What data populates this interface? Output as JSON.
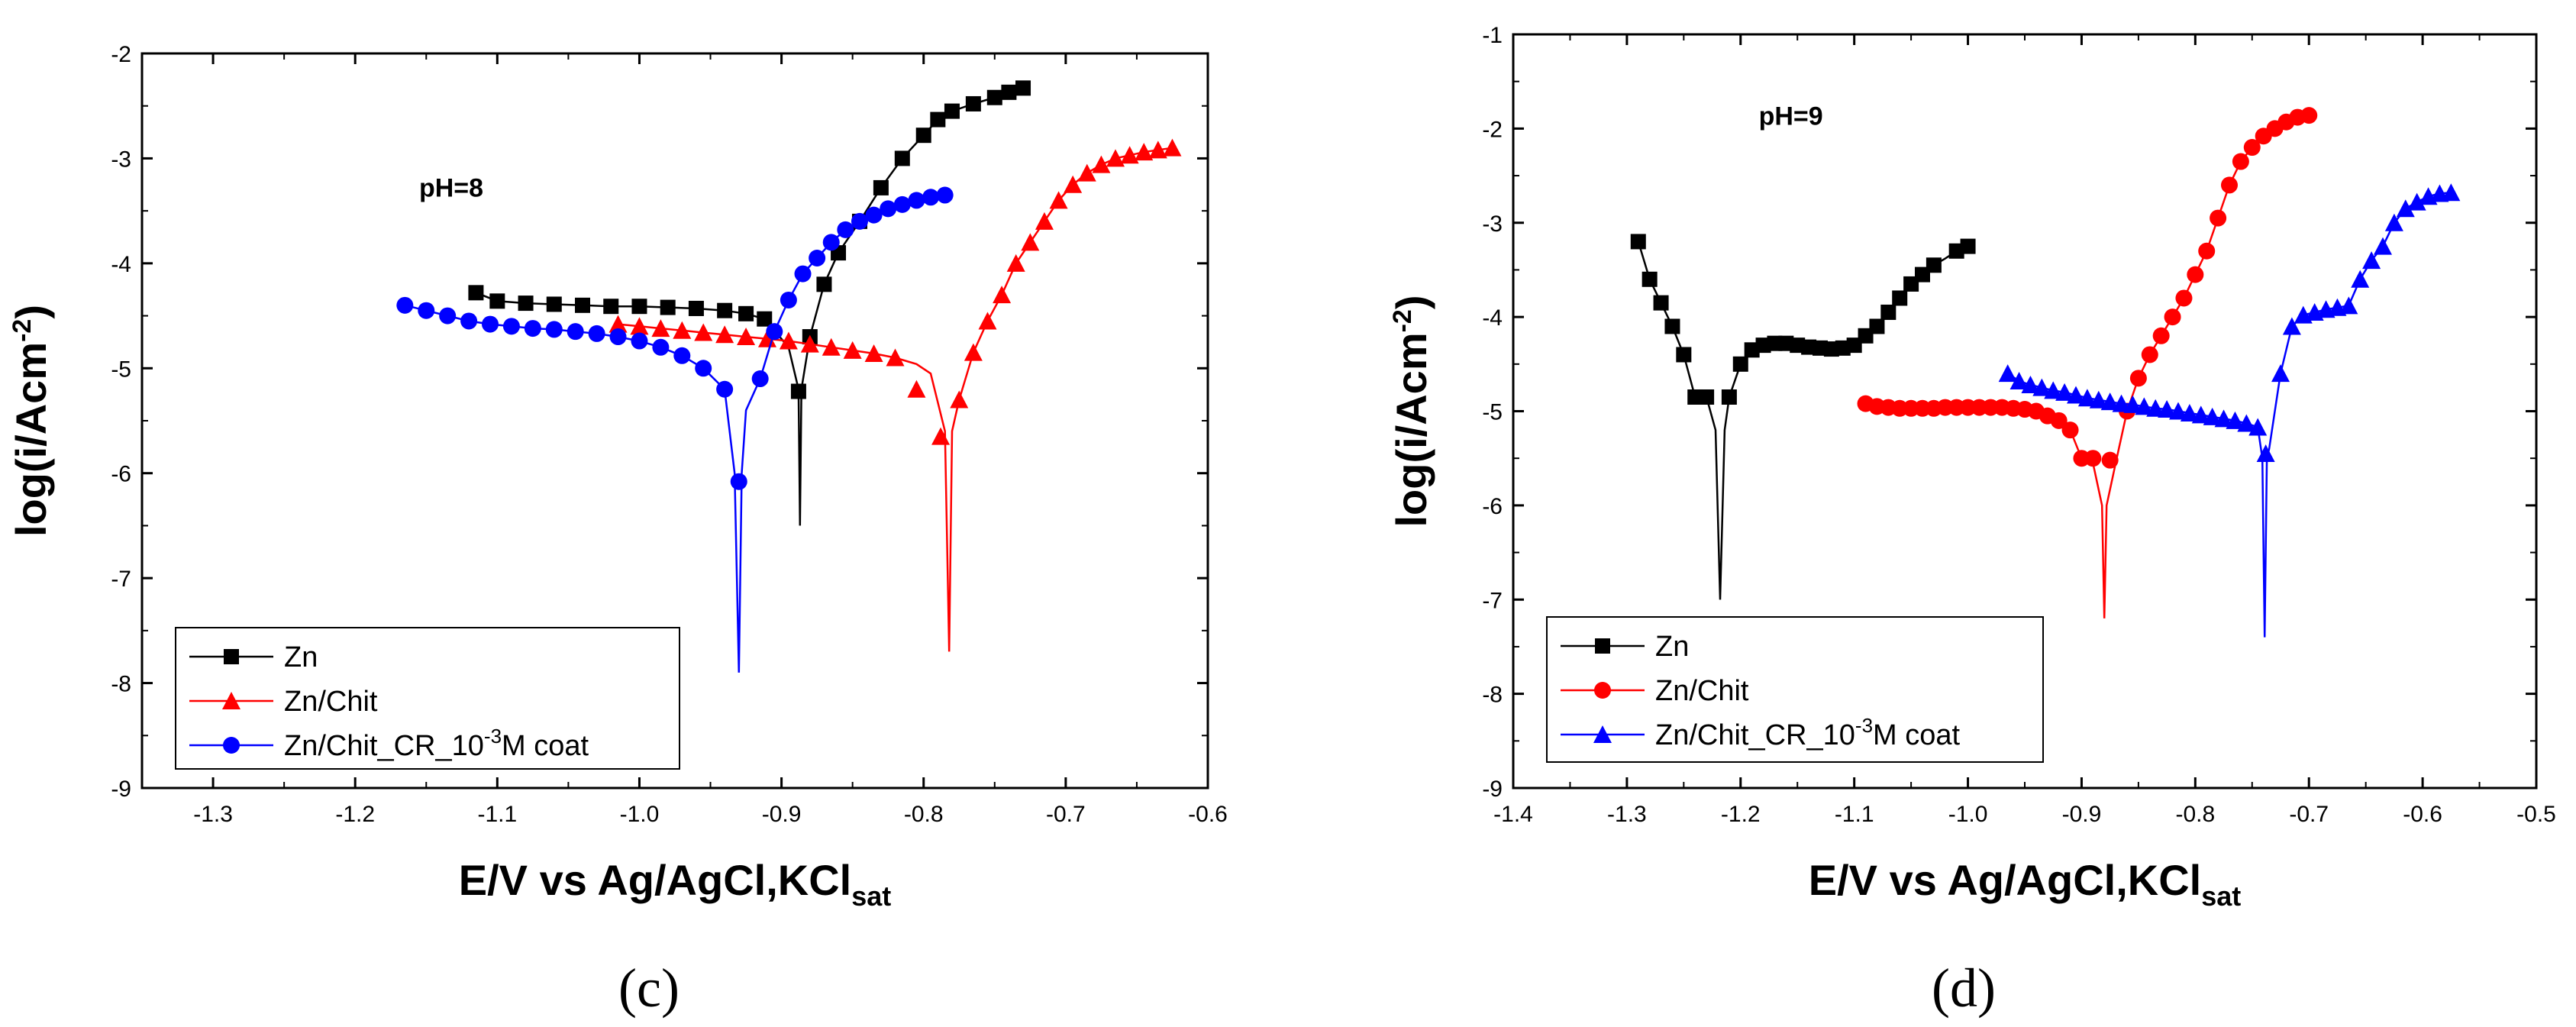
{
  "chart_data": [
    {
      "type": "line",
      "panel_label": "(c)",
      "annotation": "pH=8",
      "xlabel": "E/V vs Ag/AgCl,KCl",
      "xlabel_sub": "sat",
      "ylabel": "log(i/Acm",
      "ylabel_sup": "-2",
      "ylabel_end": ")",
      "xlim": [
        -1.35,
        -0.6
      ],
      "ylim": [
        -9,
        -2
      ],
      "xticks": [
        -1.3,
        -1.2,
        -1.1,
        -1.0,
        -0.9,
        -0.8,
        -0.7,
        -0.6
      ],
      "xtick_labels": [
        "-1.3",
        "-1.2",
        "-1.1",
        "-1.0",
        "-0.9",
        "-0.8",
        "-0.7",
        "-0.6"
      ],
      "yticks": [
        -9,
        -8,
        -7,
        -6,
        -5,
        -4,
        -3,
        -2
      ],
      "ytick_labels": [
        "-9",
        "-8",
        "-7",
        "-6",
        "-5",
        "-4",
        "-3",
        "-2"
      ],
      "legend_position": "bottom-left",
      "series": [
        {
          "name": "Zn",
          "color": "#000000",
          "marker": "square",
          "x": [
            -1.115,
            -1.1,
            -1.08,
            -1.06,
            -1.04,
            -1.02,
            -1.0,
            -0.98,
            -0.96,
            -0.94,
            -0.925,
            -0.912,
            -0.895,
            -0.888,
            -0.887,
            -0.886,
            -0.88,
            -0.87,
            -0.86,
            -0.845,
            -0.83,
            -0.815,
            -0.8,
            -0.79,
            -0.78,
            -0.765,
            -0.75,
            -0.74,
            -0.73,
            -0.725
          ],
          "y": [
            -4.28,
            -4.36,
            -4.38,
            -4.39,
            -4.4,
            -4.41,
            -4.41,
            -4.42,
            -4.43,
            -4.45,
            -4.48,
            -4.53,
            -4.8,
            -5.2,
            -6.5,
            -5.2,
            -4.7,
            -4.2,
            -3.9,
            -3.6,
            -3.28,
            -3.0,
            -2.78,
            -2.63,
            -2.55,
            -2.48,
            -2.42,
            -2.37,
            -2.33,
            -2.3
          ],
          "markers": [
            -1.115,
            -1.1,
            -1.08,
            -1.06,
            -1.04,
            -1.02,
            -1.0,
            -0.98,
            -0.96,
            -0.94,
            -0.925,
            -0.912,
            -0.888,
            -0.88,
            -0.87,
            -0.86,
            -0.845,
            -0.83,
            -0.815,
            -0.8,
            -0.79,
            -0.78,
            -0.765,
            -0.75,
            -0.74,
            -0.73
          ],
          "marker_y": [
            -4.28,
            -4.36,
            -4.38,
            -4.39,
            -4.4,
            -4.41,
            -4.41,
            -4.42,
            -4.43,
            -4.45,
            -4.48,
            -4.53,
            -5.22,
            -4.7,
            -4.2,
            -3.9,
            -3.6,
            -3.28,
            -3.0,
            -2.78,
            -2.63,
            -2.55,
            -2.48,
            -2.42,
            -2.37,
            -2.33
          ]
        },
        {
          "name": "Zn/Chit",
          "color": "#ff0000",
          "marker": "triangle",
          "x": [
            -1.015,
            -1.0,
            -0.985,
            -0.97,
            -0.955,
            -0.94,
            -0.925,
            -0.91,
            -0.895,
            -0.88,
            -0.865,
            -0.85,
            -0.835,
            -0.82,
            -0.805,
            -0.795,
            -0.785,
            -0.782,
            -0.78,
            -0.775,
            -0.765,
            -0.755,
            -0.745,
            -0.735,
            -0.725,
            -0.715,
            -0.705,
            -0.695,
            -0.685,
            -0.675,
            -0.665,
            -0.655,
            -0.645,
            -0.635,
            -0.625
          ],
          "y": [
            -4.58,
            -4.6,
            -4.62,
            -4.64,
            -4.66,
            -4.68,
            -4.7,
            -4.72,
            -4.74,
            -4.77,
            -4.8,
            -4.83,
            -4.86,
            -4.9,
            -4.96,
            -5.05,
            -5.6,
            -7.7,
            -5.6,
            -5.3,
            -4.85,
            -4.55,
            -4.3,
            -4.0,
            -3.8,
            -3.6,
            -3.4,
            -3.25,
            -3.14,
            -3.06,
            -3.0,
            -2.97,
            -2.94,
            -2.92,
            -2.9
          ],
          "markers": [
            -1.015,
            -1.0,
            -0.985,
            -0.97,
            -0.955,
            -0.94,
            -0.925,
            -0.91,
            -0.895,
            -0.88,
            -0.865,
            -0.85,
            -0.835,
            -0.82,
            -0.805,
            -0.788,
            -0.775,
            -0.765,
            -0.755,
            -0.745,
            -0.735,
            -0.725,
            -0.715,
            -0.705,
            -0.695,
            -0.685,
            -0.675,
            -0.665,
            -0.655,
            -0.645,
            -0.635,
            -0.625
          ],
          "marker_y": [
            -4.58,
            -4.6,
            -4.62,
            -4.64,
            -4.66,
            -4.68,
            -4.7,
            -4.72,
            -4.74,
            -4.77,
            -4.8,
            -4.83,
            -4.86,
            -4.9,
            -5.2,
            -5.65,
            -5.3,
            -4.85,
            -4.55,
            -4.3,
            -4.0,
            -3.8,
            -3.6,
            -3.4,
            -3.25,
            -3.14,
            -3.06,
            -3.0,
            -2.97,
            -2.94,
            -2.92,
            -2.9
          ]
        },
        {
          "name": "Zn/Chit_CR_10",
          "name_sup": "-3",
          "name_end": "M coat",
          "color": "#0000ff",
          "marker": "circle",
          "x": [
            -1.165,
            -1.15,
            -1.135,
            -1.12,
            -1.105,
            -1.09,
            -1.075,
            -1.06,
            -1.045,
            -1.03,
            -1.015,
            -1.0,
            -0.985,
            -0.97,
            -0.955,
            -0.94,
            -0.933,
            -0.93,
            -0.928,
            -0.925,
            -0.915,
            -0.905,
            -0.895,
            -0.885,
            -0.875,
            -0.865,
            -0.855,
            -0.845,
            -0.835,
            -0.825,
            -0.815,
            -0.805,
            -0.795,
            -0.785
          ],
          "y": [
            -4.4,
            -4.45,
            -4.5,
            -4.55,
            -4.58,
            -4.6,
            -4.62,
            -4.63,
            -4.65,
            -4.67,
            -4.7,
            -4.74,
            -4.8,
            -4.88,
            -5.0,
            -5.2,
            -6.0,
            -7.9,
            -6.0,
            -5.4,
            -5.1,
            -4.65,
            -4.35,
            -4.1,
            -3.95,
            -3.8,
            -3.68,
            -3.6,
            -3.54,
            -3.48,
            -3.44,
            -3.4,
            -3.37,
            -3.35
          ],
          "markers": [
            -1.165,
            -1.15,
            -1.135,
            -1.12,
            -1.105,
            -1.09,
            -1.075,
            -1.06,
            -1.045,
            -1.03,
            -1.015,
            -1.0,
            -0.985,
            -0.97,
            -0.955,
            -0.94,
            -0.93,
            -0.915,
            -0.905,
            -0.895,
            -0.885,
            -0.875,
            -0.865,
            -0.855,
            -0.845,
            -0.835,
            -0.825,
            -0.815,
            -0.805,
            -0.795,
            -0.785
          ],
          "marker_y": [
            -4.4,
            -4.45,
            -4.5,
            -4.55,
            -4.58,
            -4.6,
            -4.62,
            -4.63,
            -4.65,
            -4.67,
            -4.7,
            -4.74,
            -4.8,
            -4.88,
            -5.0,
            -5.2,
            -6.08,
            -5.1,
            -4.65,
            -4.35,
            -4.1,
            -3.95,
            -3.8,
            -3.68,
            -3.6,
            -3.54,
            -3.48,
            -3.44,
            -3.4,
            -3.37,
            -3.35
          ]
        }
      ]
    },
    {
      "type": "line",
      "panel_label": "(d)",
      "annotation": "pH=9",
      "xlabel": "E/V vs Ag/AgCl,KCl",
      "xlabel_sub": "sat",
      "ylabel": "log(i/Acm",
      "ylabel_sup": "-2",
      "ylabel_end": ")",
      "xlim": [
        -1.4,
        -0.5
      ],
      "ylim": [
        -9,
        -1
      ],
      "xticks": [
        -1.4,
        -1.3,
        -1.2,
        -1.1,
        -1.0,
        -0.9,
        -0.8,
        -0.7,
        -0.6,
        -0.5
      ],
      "xtick_labels": [
        "-1.4",
        "-1.3",
        "-1.2",
        "-1.1",
        "-1.0",
        "-0.9",
        "-0.8",
        "-0.7",
        "-0.6",
        "-0.5"
      ],
      "yticks": [
        -9,
        -8,
        -7,
        -6,
        -5,
        -4,
        -3,
        -2,
        -1
      ],
      "ytick_labels": [
        "-9",
        "-8",
        "-7",
        "-6",
        "-5",
        "-4",
        "-3",
        "-2",
        "-1"
      ],
      "legend_position": "bottom-left",
      "series": [
        {
          "name": "Zn",
          "color": "#000000",
          "marker": "square",
          "x": [
            -1.29,
            -1.28,
            -1.27,
            -1.26,
            -1.25,
            -1.24,
            -1.23,
            -1.222,
            -1.218,
            -1.214,
            -1.21,
            -1.2,
            -1.19,
            -1.18,
            -1.17,
            -1.16,
            -1.15,
            -1.14,
            -1.13,
            -1.12,
            -1.11,
            -1.1,
            -1.09,
            -1.08,
            -1.07,
            -1.06,
            -1.05,
            -1.04,
            -1.03,
            -1.02,
            -1.01,
            -1.0
          ],
          "y": [
            -3.2,
            -3.6,
            -3.85,
            -4.1,
            -4.4,
            -4.85,
            -4.85,
            -5.2,
            -7.0,
            -5.2,
            -4.85,
            -4.5,
            -4.35,
            -4.3,
            -4.28,
            -4.28,
            -4.3,
            -4.32,
            -4.33,
            -4.34,
            -4.33,
            -4.3,
            -4.2,
            -4.1,
            -3.95,
            -3.8,
            -3.65,
            -3.55,
            -3.45,
            -3.38,
            -3.3,
            -3.25
          ],
          "markers": [
            -1.29,
            -1.28,
            -1.27,
            -1.26,
            -1.25,
            -1.24,
            -1.23,
            -1.21,
            -1.2,
            -1.19,
            -1.18,
            -1.17,
            -1.16,
            -1.15,
            -1.14,
            -1.13,
            -1.12,
            -1.11,
            -1.1,
            -1.09,
            -1.08,
            -1.07,
            -1.06,
            -1.05,
            -1.04,
            -1.03,
            -1.01,
            -1.0
          ],
          "marker_y": [
            -3.2,
            -3.6,
            -3.85,
            -4.1,
            -4.4,
            -4.85,
            -4.85,
            -4.85,
            -4.5,
            -4.35,
            -4.3,
            -4.28,
            -4.28,
            -4.3,
            -4.32,
            -4.33,
            -4.34,
            -4.33,
            -4.3,
            -4.2,
            -4.1,
            -3.95,
            -3.8,
            -3.65,
            -3.55,
            -3.45,
            -3.3,
            -3.25
          ]
        },
        {
          "name": "Zn/Chit",
          "color": "#ff0000",
          "marker": "circle",
          "x": [
            -1.09,
            -1.08,
            -1.07,
            -1.06,
            -1.05,
            -1.04,
            -1.03,
            -1.02,
            -1.01,
            -1.0,
            -0.99,
            -0.98,
            -0.97,
            -0.96,
            -0.95,
            -0.94,
            -0.93,
            -0.92,
            -0.91,
            -0.9,
            -0.89,
            -0.882,
            -0.88,
            -0.878,
            -0.87,
            -0.86,
            -0.85,
            -0.84,
            -0.83,
            -0.82,
            -0.81,
            -0.8,
            -0.79,
            -0.78,
            -0.77,
            -0.76,
            -0.75,
            -0.74,
            -0.73,
            -0.72,
            -0.71,
            -0.7
          ],
          "y": [
            -4.92,
            -4.95,
            -4.96,
            -4.97,
            -4.97,
            -4.97,
            -4.97,
            -4.96,
            -4.96,
            -4.96,
            -4.96,
            -4.96,
            -4.96,
            -4.97,
            -4.98,
            -5.0,
            -5.05,
            -5.1,
            -5.2,
            -5.5,
            -5.55,
            -6.0,
            -7.2,
            -6.0,
            -5.55,
            -5.0,
            -4.65,
            -4.4,
            -4.2,
            -4.0,
            -3.8,
            -3.55,
            -3.3,
            -2.95,
            -2.6,
            -2.35,
            -2.2,
            -2.08,
            -2.0,
            -1.93,
            -1.88,
            -1.86
          ],
          "markers": [
            -1.09,
            -1.08,
            -1.07,
            -1.06,
            -1.05,
            -1.04,
            -1.03,
            -1.02,
            -1.01,
            -1.0,
            -0.99,
            -0.98,
            -0.97,
            -0.96,
            -0.95,
            -0.94,
            -0.93,
            -0.92,
            -0.91,
            -0.9,
            -0.89,
            -0.875,
            -0.86,
            -0.85,
            -0.84,
            -0.83,
            -0.82,
            -0.81,
            -0.8,
            -0.79,
            -0.78,
            -0.77,
            -0.76,
            -0.75,
            -0.74,
            -0.73,
            -0.72,
            -0.71,
            -0.7
          ],
          "marker_y": [
            -4.92,
            -4.95,
            -4.96,
            -4.97,
            -4.97,
            -4.97,
            -4.97,
            -4.96,
            -4.96,
            -4.96,
            -4.96,
            -4.96,
            -4.96,
            -4.97,
            -4.98,
            -5.0,
            -5.05,
            -5.1,
            -5.2,
            -5.5,
            -5.5,
            -5.52,
            -5.0,
            -4.65,
            -4.4,
            -4.2,
            -4.0,
            -3.8,
            -3.55,
            -3.3,
            -2.95,
            -2.6,
            -2.35,
            -2.2,
            -2.08,
            -2.0,
            -1.93,
            -1.88,
            -1.86
          ]
        },
        {
          "name": "Zn/Chit_CR_10",
          "name_sup": "-3",
          "name_end": "M coat",
          "color": "#0000ff",
          "marker": "triangle",
          "x": [
            -0.965,
            -0.955,
            -0.945,
            -0.935,
            -0.925,
            -0.915,
            -0.905,
            -0.895,
            -0.885,
            -0.875,
            -0.865,
            -0.855,
            -0.845,
            -0.835,
            -0.825,
            -0.815,
            -0.805,
            -0.795,
            -0.785,
            -0.775,
            -0.765,
            -0.755,
            -0.745,
            -0.741,
            -0.739,
            -0.737,
            -0.735,
            -0.725,
            -0.715,
            -0.705,
            -0.695,
            -0.685,
            -0.675,
            -0.665,
            -0.655,
            -0.645,
            -0.635,
            -0.625,
            -0.615,
            -0.605,
            -0.595,
            -0.585,
            -0.575
          ],
          "y": [
            -4.6,
            -4.68,
            -4.72,
            -4.75,
            -4.78,
            -4.8,
            -4.83,
            -4.86,
            -4.88,
            -4.9,
            -4.92,
            -4.93,
            -4.95,
            -4.97,
            -4.98,
            -5.0,
            -5.02,
            -5.04,
            -5.06,
            -5.08,
            -5.1,
            -5.13,
            -5.17,
            -5.5,
            -7.4,
            -5.5,
            -5.4,
            -4.6,
            -4.1,
            -3.98,
            -3.95,
            -3.92,
            -3.9,
            -3.88,
            -3.6,
            -3.4,
            -3.25,
            -3.0,
            -2.85,
            -2.78,
            -2.72,
            -2.69,
            -2.68
          ],
          "markers": [
            -0.965,
            -0.955,
            -0.945,
            -0.935,
            -0.925,
            -0.915,
            -0.905,
            -0.895,
            -0.885,
            -0.875,
            -0.865,
            -0.855,
            -0.845,
            -0.835,
            -0.825,
            -0.815,
            -0.805,
            -0.795,
            -0.785,
            -0.775,
            -0.765,
            -0.755,
            -0.745,
            -0.738,
            -0.725,
            -0.715,
            -0.705,
            -0.695,
            -0.685,
            -0.675,
            -0.665,
            -0.655,
            -0.645,
            -0.635,
            -0.625,
            -0.615,
            -0.605,
            -0.595,
            -0.585,
            -0.575
          ],
          "marker_y": [
            -4.6,
            -4.68,
            -4.72,
            -4.75,
            -4.78,
            -4.8,
            -4.83,
            -4.86,
            -4.88,
            -4.9,
            -4.92,
            -4.93,
            -4.95,
            -4.97,
            -4.98,
            -5.0,
            -5.02,
            -5.04,
            -5.06,
            -5.08,
            -5.1,
            -5.13,
            -5.17,
            -5.45,
            -4.6,
            -4.1,
            -3.98,
            -3.95,
            -3.92,
            -3.9,
            -3.88,
            -3.6,
            -3.4,
            -3.25,
            -3.0,
            -2.85,
            -2.78,
            -2.72,
            -2.69,
            -2.68
          ]
        }
      ]
    }
  ]
}
